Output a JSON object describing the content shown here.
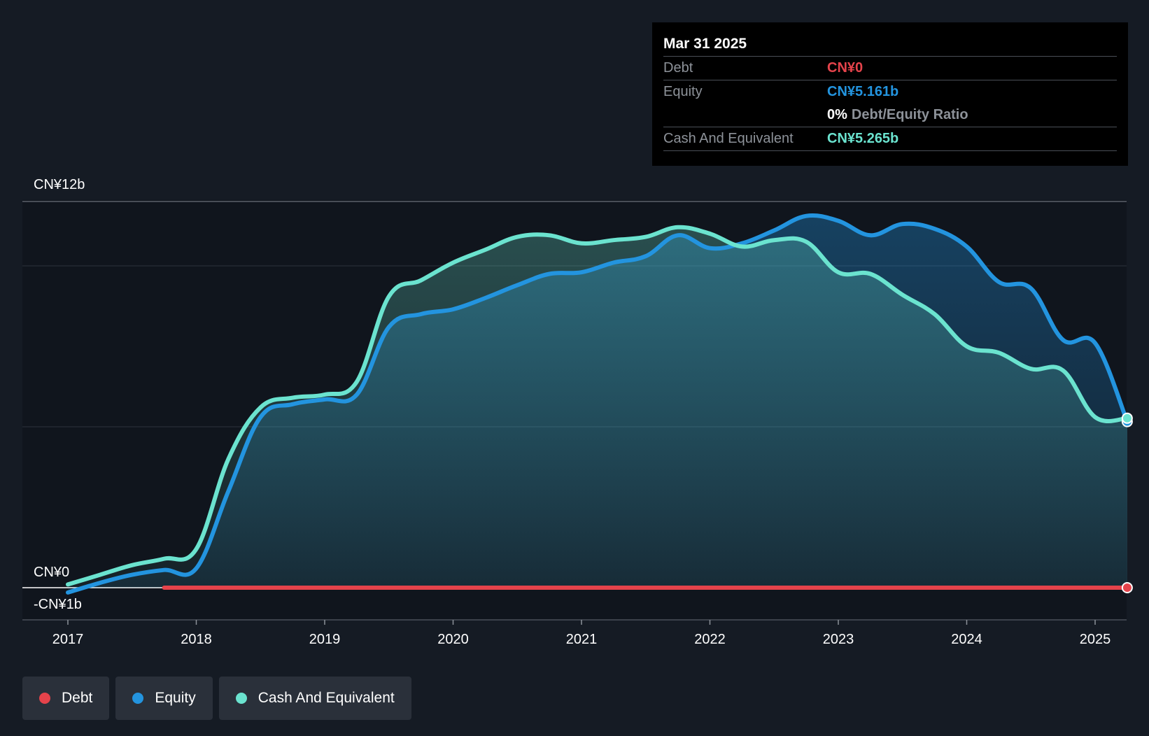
{
  "colors": {
    "background": "#151b24",
    "debt": "#e5434b",
    "equity": "#2394df",
    "cash": "#6be3cf"
  },
  "tooltip": {
    "date": "Mar 31 2025",
    "debt_label": "Debt",
    "debt_value": "CN¥0",
    "equity_label": "Equity",
    "equity_value": "CN¥5.161b",
    "ratio_value": "0%",
    "ratio_label": "Debt/Equity Ratio",
    "cash_label": "Cash And Equivalent",
    "cash_value": "CN¥5.265b"
  },
  "legend": {
    "debt": "Debt",
    "equity": "Equity",
    "cash": "Cash And Equivalent"
  },
  "chart_data": {
    "type": "area",
    "y_axis_labels": [
      "CN¥12b",
      "CN¥0",
      "-CN¥1b"
    ],
    "x_ticks": [
      "2017",
      "2018",
      "2019",
      "2020",
      "2021",
      "2022",
      "2023",
      "2024",
      "2025"
    ],
    "ylim": [
      -1,
      12
    ],
    "grid": true,
    "legend_position": "bottom-left",
    "series": [
      {
        "name": "Debt",
        "color": "#e5434b",
        "points": [
          [
            2017.75,
            0
          ],
          [
            2018.5,
            0
          ],
          [
            2019.5,
            0
          ],
          [
            2020.5,
            0
          ],
          [
            2021.5,
            0
          ],
          [
            2022.5,
            0
          ],
          [
            2023.5,
            0
          ],
          [
            2024.5,
            0
          ],
          [
            2025.25,
            0
          ]
        ]
      },
      {
        "name": "Equity",
        "color": "#2394df",
        "points": [
          [
            2017.0,
            -0.15
          ],
          [
            2017.25,
            0.15
          ],
          [
            2017.5,
            0.4
          ],
          [
            2017.75,
            0.55
          ],
          [
            2018.0,
            0.6
          ],
          [
            2018.25,
            3.0
          ],
          [
            2018.5,
            5.3
          ],
          [
            2018.75,
            5.7
          ],
          [
            2019.0,
            5.85
          ],
          [
            2019.25,
            6.0
          ],
          [
            2019.5,
            8.1
          ],
          [
            2019.75,
            8.5
          ],
          [
            2020.0,
            8.65
          ],
          [
            2020.25,
            9.0
          ],
          [
            2020.5,
            9.4
          ],
          [
            2020.75,
            9.75
          ],
          [
            2021.0,
            9.8
          ],
          [
            2021.25,
            10.1
          ],
          [
            2021.5,
            10.3
          ],
          [
            2021.75,
            10.95
          ],
          [
            2022.0,
            10.55
          ],
          [
            2022.25,
            10.7
          ],
          [
            2022.5,
            11.1
          ],
          [
            2022.75,
            11.55
          ],
          [
            2023.0,
            11.4
          ],
          [
            2023.25,
            10.95
          ],
          [
            2023.5,
            11.3
          ],
          [
            2023.75,
            11.15
          ],
          [
            2024.0,
            10.6
          ],
          [
            2024.25,
            9.5
          ],
          [
            2024.5,
            9.3
          ],
          [
            2024.75,
            7.7
          ],
          [
            2025.0,
            7.6
          ],
          [
            2025.25,
            5.161
          ]
        ]
      },
      {
        "name": "Cash And Equivalent",
        "color": "#6be3cf",
        "points": [
          [
            2017.0,
            0.1
          ],
          [
            2017.25,
            0.4
          ],
          [
            2017.5,
            0.7
          ],
          [
            2017.75,
            0.9
          ],
          [
            2018.0,
            1.2
          ],
          [
            2018.25,
            4.0
          ],
          [
            2018.5,
            5.6
          ],
          [
            2018.75,
            5.9
          ],
          [
            2019.0,
            6.0
          ],
          [
            2019.25,
            6.4
          ],
          [
            2019.5,
            9.05
          ],
          [
            2019.75,
            9.55
          ],
          [
            2020.0,
            10.1
          ],
          [
            2020.25,
            10.5
          ],
          [
            2020.5,
            10.9
          ],
          [
            2020.75,
            10.95
          ],
          [
            2021.0,
            10.7
          ],
          [
            2021.25,
            10.8
          ],
          [
            2021.5,
            10.9
          ],
          [
            2021.75,
            11.2
          ],
          [
            2022.0,
            11.0
          ],
          [
            2022.25,
            10.6
          ],
          [
            2022.5,
            10.8
          ],
          [
            2022.75,
            10.75
          ],
          [
            2023.0,
            9.8
          ],
          [
            2023.25,
            9.75
          ],
          [
            2023.5,
            9.1
          ],
          [
            2023.75,
            8.5
          ],
          [
            2024.0,
            7.5
          ],
          [
            2024.25,
            7.3
          ],
          [
            2024.5,
            6.8
          ],
          [
            2024.75,
            6.75
          ],
          [
            2025.0,
            5.3
          ],
          [
            2025.25,
            5.265
          ]
        ]
      }
    ]
  }
}
